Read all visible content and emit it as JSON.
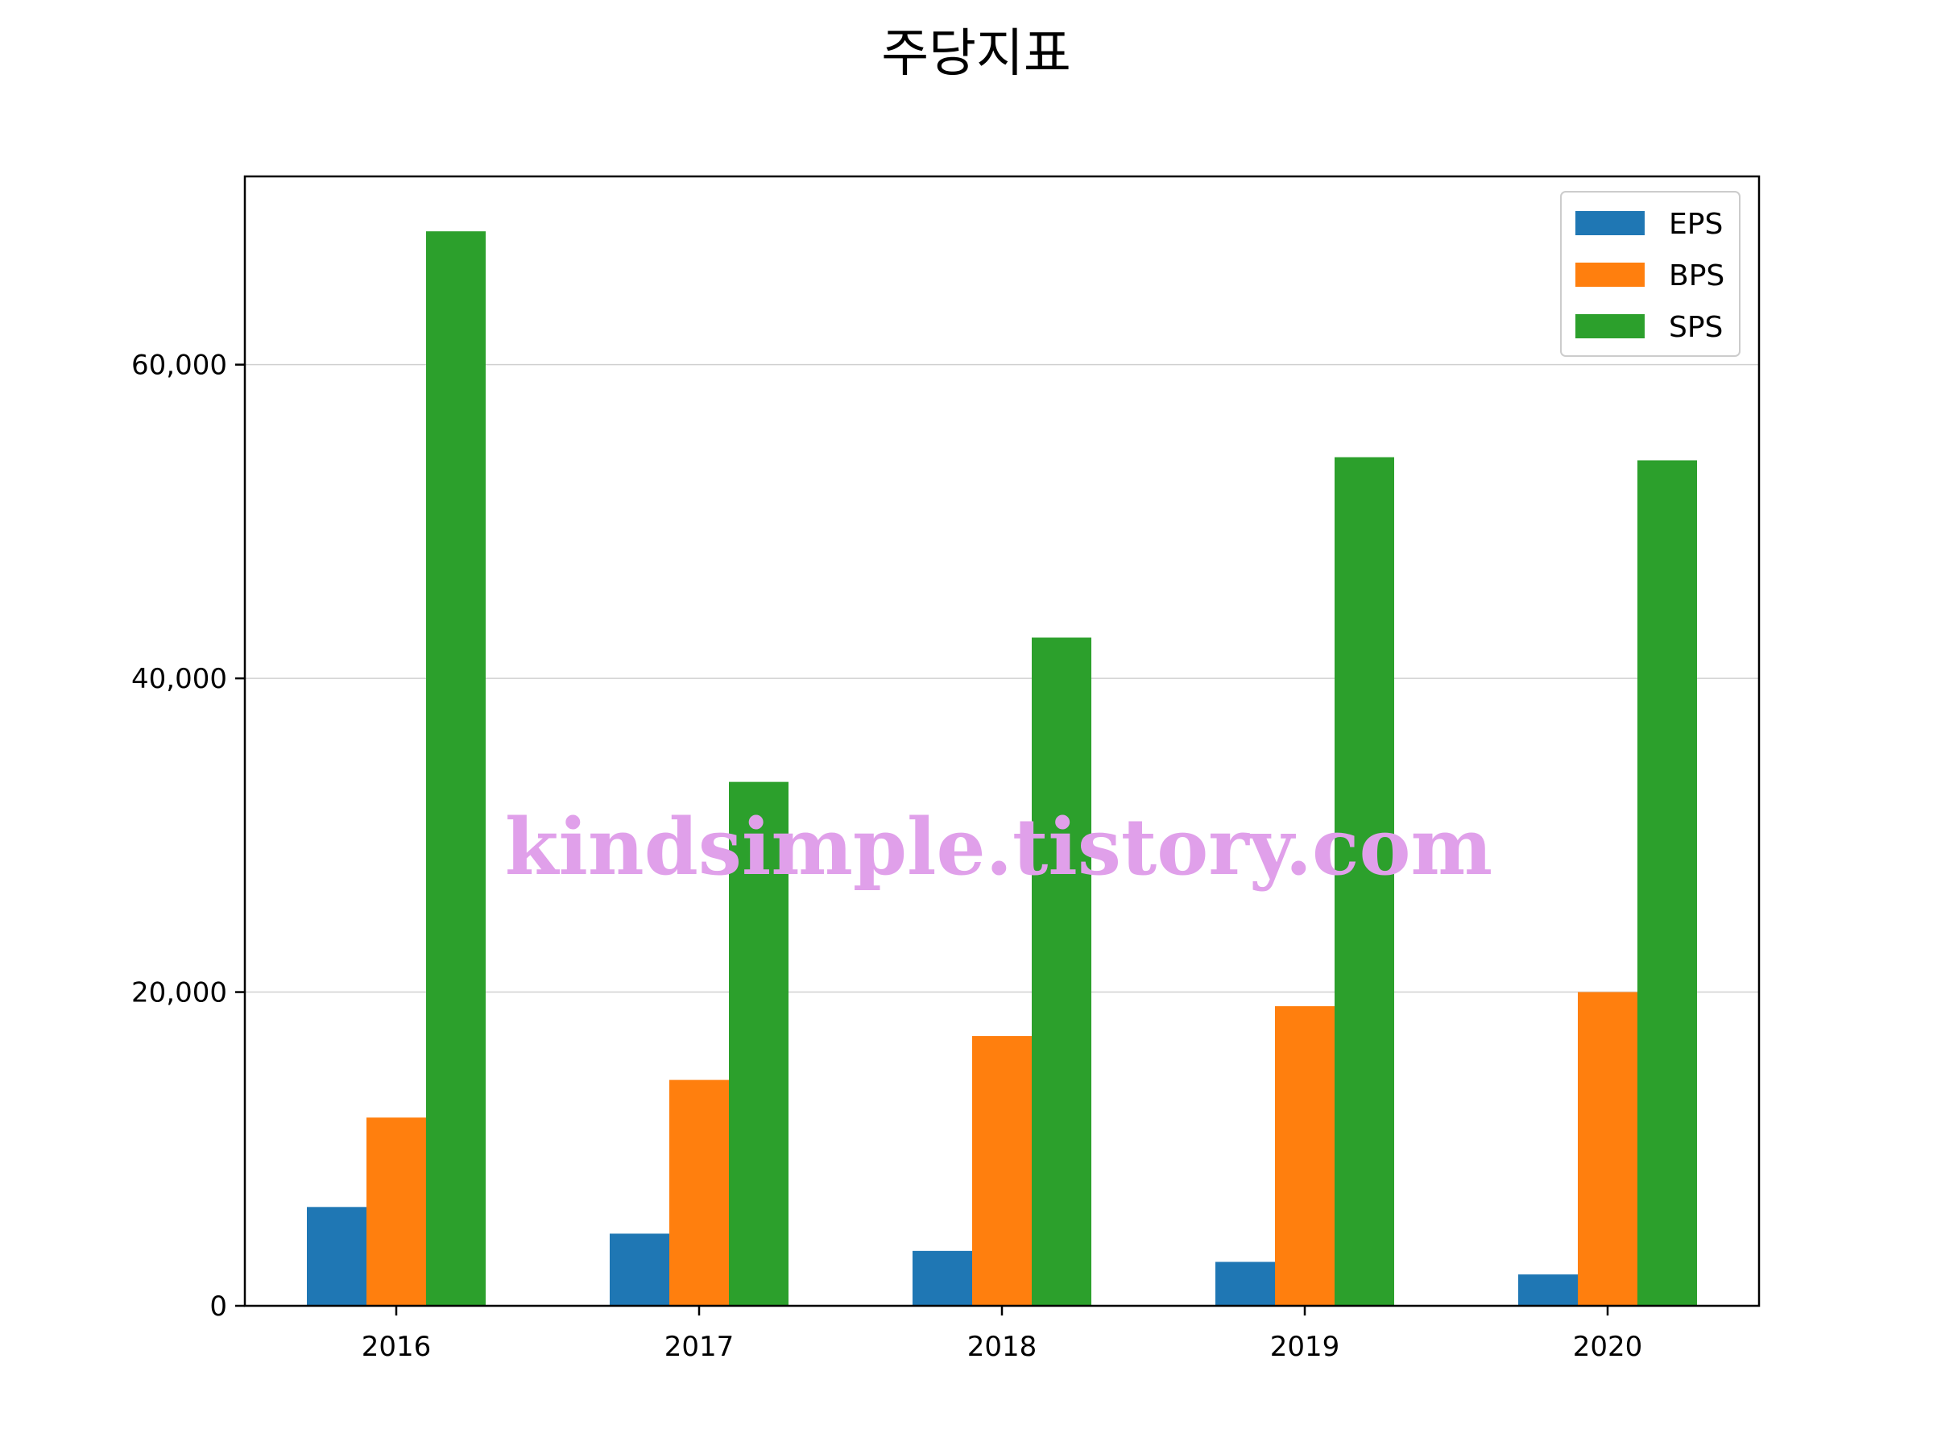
{
  "chart_data": {
    "type": "bar",
    "title": "주당지표",
    "xlabel": "",
    "ylabel": "",
    "categories": [
      "2016",
      "2017",
      "2018",
      "2019",
      "2020"
    ],
    "series": [
      {
        "name": "EPS",
        "color": "#1f77b4",
        "values": [
          6300,
          4600,
          3500,
          2800,
          2000
        ]
      },
      {
        "name": "BPS",
        "color": "#ff7f0e",
        "values": [
          12000,
          14400,
          17200,
          19100,
          20000
        ]
      },
      {
        "name": "SPS",
        "color": "#2ca02c",
        "values": [
          68500,
          33400,
          42600,
          54100,
          53900
        ]
      }
    ],
    "ylim": [
      0,
      72000
    ],
    "yticks": [
      0,
      20000,
      40000,
      60000
    ],
    "ytick_labels": [
      "0",
      "20,000",
      "40,000",
      "60,000"
    ],
    "grid": "horizontal",
    "legend_position": "top-right"
  },
  "watermark": "kindsimple.tistory.com"
}
